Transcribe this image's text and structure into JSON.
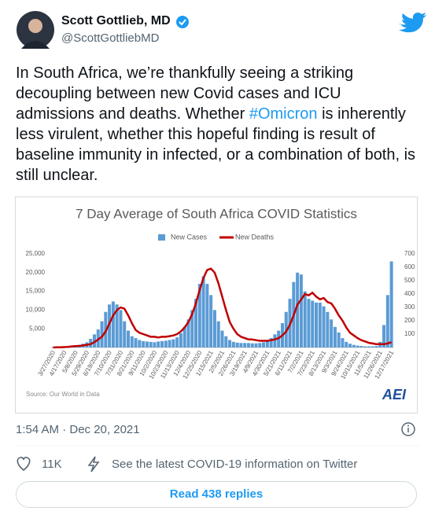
{
  "author": {
    "name": "Scott Gottlieb, MD",
    "handle": "@ScottGottliebMD"
  },
  "tweet": {
    "text_parts": [
      "In South Africa, we’re thankfully seeing a striking decoupling between new Covid cases and ICU admissions and deaths. Whether",
      "#Omicron",
      "is inherently less virulent, whether this hopeful finding is result of baseline immunity in infected, or a combination of both, is still unclear."
    ]
  },
  "chart_data": {
    "type": "bar",
    "title": "7 Day Average of South Africa COVID Statistics",
    "source": "Source: Our World in Data",
    "logo": "AEI",
    "categories": [
      "3/27/2020",
      null,
      null,
      "4/17/2020",
      null,
      null,
      "5/8/2020",
      null,
      null,
      "5/29/2020",
      null,
      null,
      "6/19/2020",
      null,
      null,
      "7/10/2020",
      null,
      null,
      "7/31/2020",
      null,
      null,
      "8/21/2020",
      null,
      null,
      "9/11/2020",
      null,
      null,
      "10/2/2020",
      null,
      null,
      "10/23/2020",
      null,
      null,
      "11/13/2020",
      null,
      null,
      "12/4/2020",
      null,
      null,
      "12/25/2020",
      null,
      null,
      "1/15/2021",
      null,
      null,
      "2/5/2021",
      null,
      null,
      "2/26/2021",
      null,
      null,
      "3/19/2021",
      null,
      null,
      "4/9/2021",
      null,
      null,
      "4/30/2021",
      null,
      null,
      "5/21/2021",
      null,
      null,
      "6/11/2021",
      null,
      null,
      "7/2/2021",
      null,
      null,
      "7/23/2021",
      null,
      null,
      "8/13/2021",
      null,
      null,
      "9/3/2021",
      null,
      null,
      "9/24/2021",
      null,
      null,
      "10/15/2021",
      null,
      null,
      "11/5/2021",
      null,
      null,
      "11/26/2021",
      null,
      null,
      "12/17/2021"
    ],
    "series": [
      {
        "name": "New Cases",
        "color": "#5b9bd5",
        "values": [
          100,
          100,
          80,
          100,
          200,
          300,
          500,
          700,
          1000,
          1400,
          2300,
          3500,
          4800,
          7000,
          9500,
          11500,
          12300,
          11500,
          10000,
          7000,
          4500,
          3000,
          2500,
          2000,
          1700,
          1600,
          1500,
          1400,
          1600,
          1700,
          1800,
          2000,
          2200,
          2700,
          3800,
          5500,
          7500,
          10000,
          13000,
          17000,
          19000,
          17000,
          14000,
          10000,
          7000,
          4500,
          3000,
          2000,
          1500,
          1300,
          1200,
          1200,
          1200,
          1100,
          1100,
          1200,
          1400,
          1800,
          2500,
          3500,
          4500,
          6500,
          9500,
          13000,
          17500,
          20000,
          19500,
          15000,
          13000,
          12500,
          12000,
          12000,
          11000,
          9500,
          7500,
          5500,
          4000,
          2500,
          1500,
          1000,
          700,
          500,
          400,
          300,
          300,
          300,
          400,
          1500,
          6000,
          14000,
          23000
        ]
      },
      {
        "name": "New Deaths",
        "color": "#c00000",
        "axis": "y2",
        "values": [
          0,
          1,
          2,
          3,
          5,
          8,
          10,
          12,
          15,
          20,
          25,
          40,
          60,
          80,
          120,
          180,
          240,
          280,
          300,
          290,
          240,
          180,
          130,
          110,
          100,
          90,
          80,
          80,
          75,
          80,
          80,
          85,
          90,
          100,
          120,
          150,
          190,
          250,
          330,
          430,
          520,
          580,
          590,
          560,
          480,
          380,
          280,
          190,
          140,
          100,
          80,
          70,
          60,
          60,
          55,
          50,
          50,
          50,
          55,
          60,
          70,
          90,
          120,
          170,
          240,
          320,
          360,
          400,
          390,
          410,
          380,
          360,
          370,
          340,
          330,
          290,
          240,
          200,
          150,
          110,
          90,
          70,
          55,
          45,
          35,
          30,
          25,
          25,
          25,
          30,
          40
        ]
      }
    ],
    "ylim": [
      0,
      25000
    ],
    "yticks": [
      {
        "value": 5000,
        "label": "5,000"
      },
      {
        "value": 10000,
        "label": "10,000"
      },
      {
        "value": 15000,
        "label": "15,000"
      },
      {
        "value": 20000,
        "label": "20,000"
      },
      {
        "value": 25000,
        "label": "25,000"
      }
    ],
    "y2lim": [
      0,
      700
    ],
    "y2ticks": [
      100,
      200,
      300,
      400,
      500,
      600,
      700
    ],
    "legend": "top"
  },
  "footer": {
    "timestamp": "1:54 AM · Dec 20, 2021",
    "likes": "11K",
    "info_link": "See the latest COVID-19 information on Twitter",
    "replies_button": "Read 438 replies"
  }
}
